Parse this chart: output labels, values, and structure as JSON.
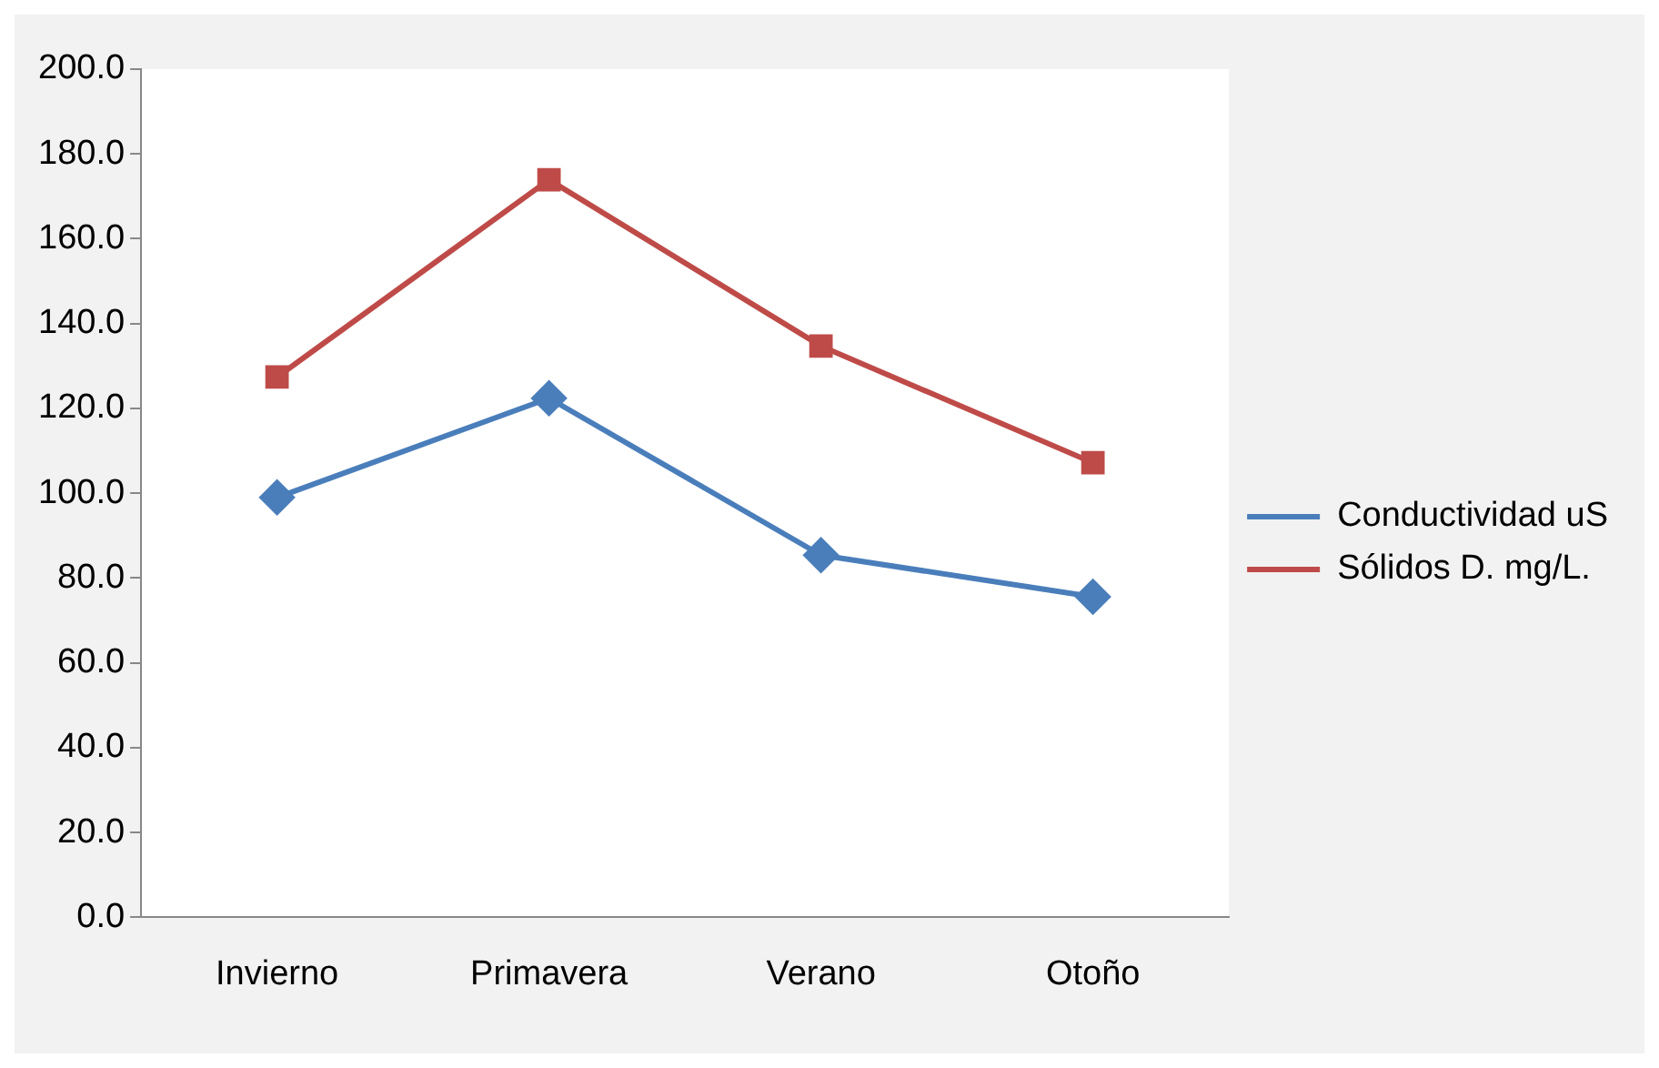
{
  "chart_data": {
    "type": "line",
    "categories": [
      "Invierno",
      "Primavera",
      "Verano",
      "Otoño"
    ],
    "series": [
      {
        "name": "Conductividad uS",
        "color": "#4a7ebb",
        "marker": "diamond",
        "values": [
          99.0,
          122.4,
          85.4,
          75.6
        ]
      },
      {
        "name": "Sólidos D. mg/L.",
        "color": "#be4b48",
        "marker": "square",
        "values": [
          127.4,
          173.9,
          134.7,
          107.2
        ]
      }
    ],
    "ylim": [
      0,
      200
    ],
    "yticks": [
      {
        "value": 0,
        "label": "0.0"
      },
      {
        "value": 20,
        "label": "20.0"
      },
      {
        "value": 40,
        "label": "40.0"
      },
      {
        "value": 60,
        "label": "60.0"
      },
      {
        "value": 80,
        "label": "80.0"
      },
      {
        "value": 100,
        "label": "100.0"
      },
      {
        "value": 120,
        "label": "120.0"
      },
      {
        "value": 140,
        "label": "140.0"
      },
      {
        "value": 160,
        "label": "160.0"
      },
      {
        "value": 180,
        "label": "180.0"
      },
      {
        "value": 200,
        "label": "200.0"
      }
    ],
    "grid": false,
    "legend": "right"
  }
}
